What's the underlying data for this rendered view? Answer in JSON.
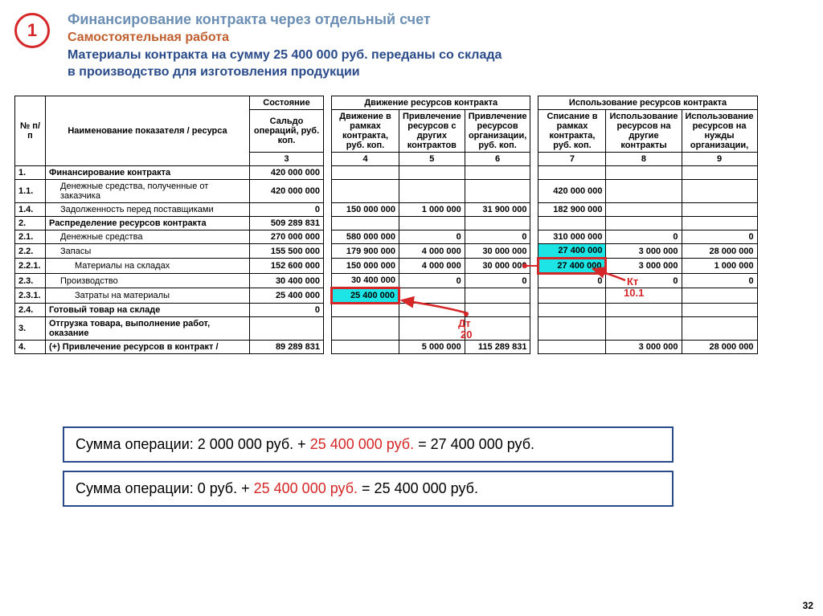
{
  "badge_number": "1",
  "title1": "Финансирование контракта через отдельный счет",
  "title2": "Самостоятельная работа",
  "title3a": "Материалы контракта на сумму 25 400 000 руб. переданы со склада",
  "title3b": "в производство для изготовления продукции",
  "cols": {
    "npp": "№ п/п",
    "name": "Наименование показателя / ресурса",
    "state": "Состояние",
    "saldo": "Сальдо операций, руб. коп.",
    "grp_move": "Движение ресурсов контракта",
    "c4": "Движение в рамках контракта, руб. коп.",
    "c5": "Привлечение ресурсов с других контрактов",
    "c6": "Привлечение ресурсов организации, руб. коп.",
    "grp_use": "Использование ресурсов контракта",
    "c7": "Списание в рамках контракта, руб. коп.",
    "c8": "Использование ресурсов на другие контракты",
    "c9": "Использование ресурсов на нужды организации,",
    "n3": "3",
    "n4": "4",
    "n5": "5",
    "n6": "6",
    "n7": "7",
    "n8": "8",
    "n9": "9"
  },
  "rows": [
    {
      "id": "1.",
      "cls": "lbl",
      "name": "Финансирование контракта",
      "c3": "420 000 000",
      "c4": "",
      "c5": "",
      "c6": "",
      "c7": "",
      "c8": "",
      "c9": ""
    },
    {
      "id": "1.1.",
      "cls": "lbl-sub",
      "name": "Денежные средства, полученные от заказчика",
      "c3": "420 000 000",
      "c4": "",
      "c5": "",
      "c6": "",
      "c7": "420 000 000",
      "c8": "",
      "c9": ""
    },
    {
      "id": "1.4.",
      "cls": "lbl-sub",
      "name": "Задолженность перед поставщиками",
      "c3": "0",
      "c4": "150 000 000",
      "c5": "1 000 000",
      "c6": "31 900 000",
      "c7": "182 900 000",
      "c8": "",
      "c9": ""
    },
    {
      "id": "2.",
      "cls": "lbl",
      "name": "Распределение ресурсов контракта",
      "c3": "509 289 831",
      "c4": "",
      "c5": "",
      "c6": "",
      "c7": "",
      "c8": "",
      "c9": ""
    },
    {
      "id": "2.1.",
      "cls": "lbl-sub",
      "name": "Денежные средства",
      "c3": "270 000 000",
      "c4": "580 000 000",
      "c5": "0",
      "c6": "0",
      "c7": "310 000 000",
      "c8": "0",
      "c9": "0"
    },
    {
      "id": "2.2.",
      "cls": "lbl-sub",
      "name": "Запасы",
      "c3": "155 500 000",
      "c4": "179 900 000",
      "c5": "4 000 000",
      "c6": "30 000 000",
      "c7": "27 400 000",
      "c7hi": "cyan",
      "c8": "3 000 000",
      "c9": "28 000 000"
    },
    {
      "id": "2.2.1.",
      "cls": "lbl-sub2",
      "name": "Материалы на складах",
      "c3": "152 600 000",
      "c4": "150 000 000",
      "c5": "4 000 000",
      "c6": "30 000 000",
      "c7": "27 400 000",
      "c7hi": "cyan-strong",
      "c8": "3 000 000",
      "c9": "1 000 000"
    },
    {
      "id": "2.3.",
      "cls": "lbl-sub",
      "name": "Производство",
      "c3": "30 400 000",
      "c4": "30 400 000",
      "c5": "0",
      "c6": "0",
      "c7": "0",
      "c8": "0",
      "c9": "0"
    },
    {
      "id": "2.3.1.",
      "cls": "lbl-sub2",
      "name": "Затраты на материалы",
      "c3": "25 400 000",
      "c4": "25 400 000",
      "c4hi": "cyan-strong",
      "c5": "",
      "c6": "",
      "c7": "",
      "c8": "",
      "c9": ""
    },
    {
      "id": "2.4.",
      "cls": "lbl",
      "name": "Готовый товар на складе",
      "c3": "0",
      "c4": "",
      "c5": "",
      "c6": "",
      "c7": "",
      "c8": "",
      "c9": ""
    },
    {
      "id": "3.",
      "cls": "lbl",
      "name": "Отгрузка товара, выполнение работ, оказание",
      "c3": "",
      "c4": "",
      "c5": "",
      "c6": "",
      "c7": "",
      "c8": "",
      "c9": ""
    },
    {
      "id": "4.",
      "cls": "lbl",
      "name": "(+) Привлечение ресурсов в контракт /",
      "c3": "89 289 831",
      "c4": "",
      "c5": "5 000 000",
      "c6": "115 289 831",
      "c7": "",
      "c8": "3 000 000",
      "c9": "28 000 000"
    }
  ],
  "anno": {
    "dt20": "Дт\n20",
    "kt101": "Кт\n10.1"
  },
  "formula1": {
    "a": "Сумма операции: 2 000 000 руб. + ",
    "b": "25 400 000 руб.",
    "c": " = 27 400 000 руб."
  },
  "formula2": {
    "a": "Сумма операции: 0 руб. + ",
    "b": "25 400 000 руб.",
    "c": " = 25 400 000 руб."
  },
  "page": "32"
}
